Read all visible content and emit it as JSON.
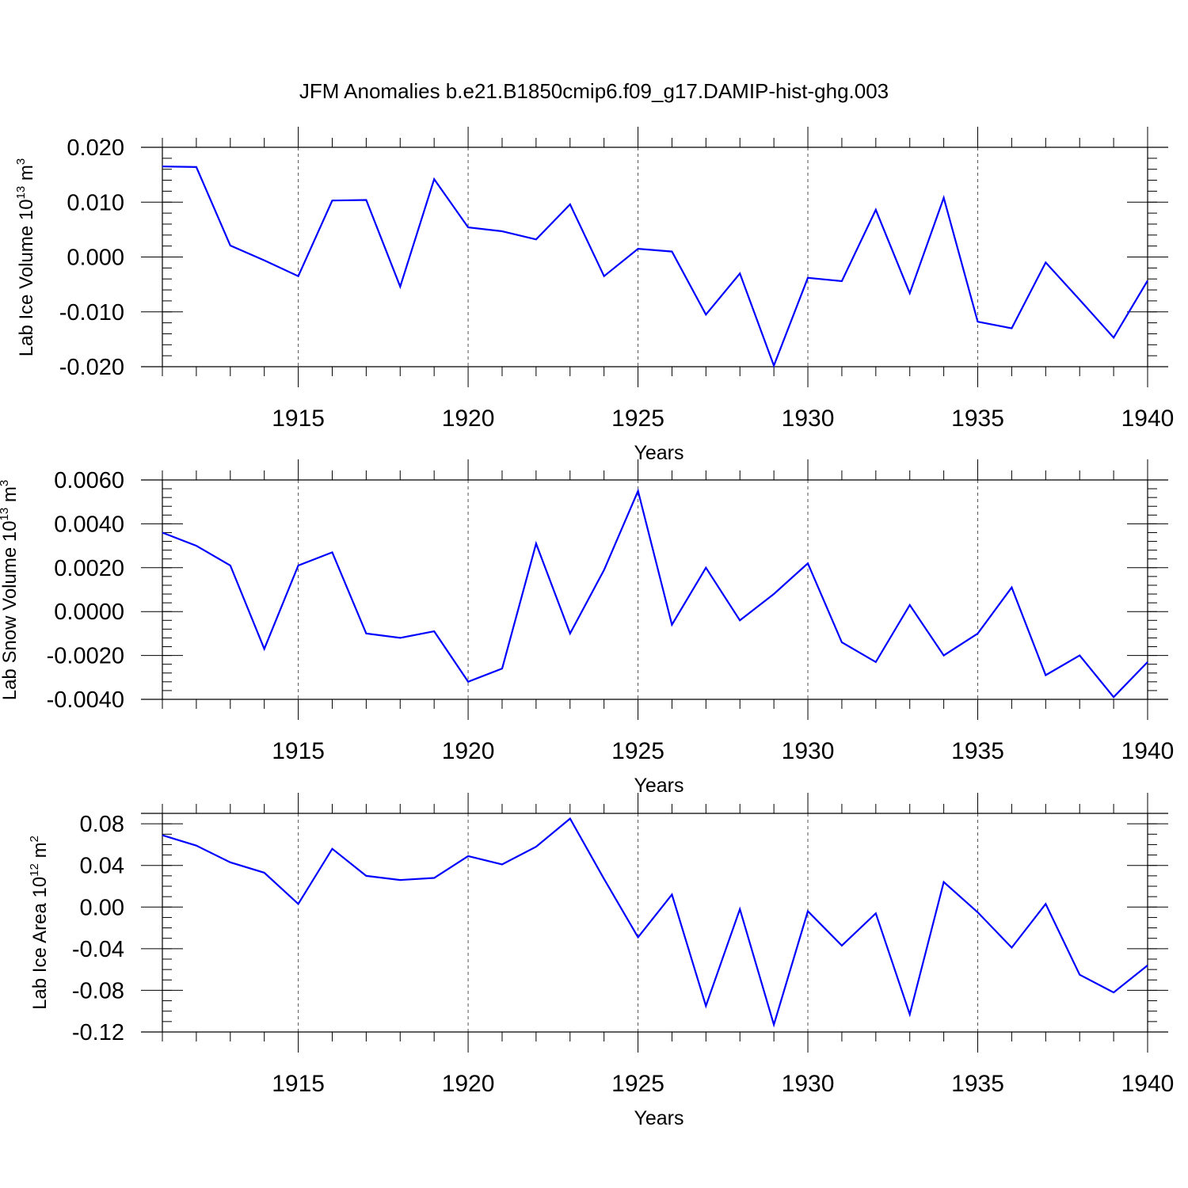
{
  "title": "JFM Anomalies b.e21.B1850cmip6.f09_g17.DAMIP-hist-ghg.003",
  "chart_data": [
    {
      "type": "line",
      "ylabel": {
        "main": "Lab Ice Volume 10",
        "exp": "13",
        "unit": " m",
        "unit_exp": "3"
      },
      "xlabel": "Years",
      "xlim": [
        1911,
        1940
      ],
      "ylim": [
        -0.02,
        0.02
      ],
      "yticks": [
        "0.020",
        "0.010",
        "0.000",
        "-0.010",
        "-0.020"
      ],
      "ytick_values": [
        0.02,
        0.01,
        0.0,
        -0.01,
        -0.02
      ],
      "yminor_step": 0.002,
      "xticks": [
        "1915",
        "1920",
        "1925",
        "1930",
        "1935",
        "1940"
      ],
      "xtick_values": [
        1915,
        1920,
        1925,
        1930,
        1935,
        1940
      ],
      "grid": "dashed vertical at major x ticks",
      "line_color": "#0000ff",
      "x": [
        1911,
        1912,
        1913,
        1914,
        1915,
        1916,
        1917,
        1918,
        1919,
        1920,
        1921,
        1922,
        1923,
        1924,
        1925,
        1926,
        1927,
        1928,
        1929,
        1930,
        1931,
        1932,
        1933,
        1934,
        1935,
        1936,
        1937,
        1938,
        1939,
        1940
      ],
      "values": [
        0.0165,
        0.0164,
        0.0021,
        -0.0006,
        -0.0035,
        0.0103,
        0.0104,
        -0.0054,
        0.0142,
        0.0054,
        0.0047,
        0.0032,
        0.0096,
        -0.0035,
        0.0015,
        0.001,
        -0.0105,
        -0.003,
        -0.0198,
        -0.0038,
        -0.0044,
        0.0086,
        -0.0066,
        0.0108,
        -0.0118,
        -0.013,
        -0.001,
        -0.0078,
        -0.0147,
        -0.0043
      ]
    },
    {
      "type": "line",
      "ylabel": {
        "main": "Lab Snow Volume 10",
        "exp": "13",
        "unit": " m",
        "unit_exp": "3"
      },
      "xlabel": "Years",
      "xlim": [
        1911,
        1940
      ],
      "ylim": [
        -0.004,
        0.006
      ],
      "yticks": [
        "0.0060",
        "0.0040",
        "0.0020",
        "0.0000",
        "-0.0020",
        "-0.0040"
      ],
      "ytick_values": [
        0.006,
        0.004,
        0.002,
        0.0,
        -0.002,
        -0.004
      ],
      "yminor_step": 0.0004,
      "xticks": [
        "1915",
        "1920",
        "1925",
        "1930",
        "1935",
        "1940"
      ],
      "xtick_values": [
        1915,
        1920,
        1925,
        1930,
        1935,
        1940
      ],
      "grid": "dashed vertical at major x ticks",
      "line_color": "#0000ff",
      "x": [
        1911,
        1912,
        1913,
        1914,
        1915,
        1916,
        1917,
        1918,
        1919,
        1920,
        1921,
        1922,
        1923,
        1924,
        1925,
        1926,
        1927,
        1928,
        1929,
        1930,
        1931,
        1932,
        1933,
        1934,
        1935,
        1936,
        1937,
        1938,
        1939,
        1940
      ],
      "values": [
        0.0036,
        0.003,
        0.0021,
        -0.0017,
        0.0021,
        0.0027,
        -0.001,
        -0.0012,
        -0.0009,
        -0.0032,
        -0.0026,
        0.0031,
        -0.001,
        0.0019,
        0.0055,
        -0.0006,
        0.002,
        -0.0004,
        0.0008,
        0.0022,
        -0.0014,
        -0.0023,
        0.0003,
        -0.002,
        -0.001,
        0.0011,
        -0.0029,
        -0.002,
        -0.0039,
        -0.0023
      ]
    },
    {
      "type": "line",
      "ylabel": {
        "main": "Lab Ice Area 10",
        "exp": "12",
        "unit": " m",
        "unit_exp": "2"
      },
      "xlabel": "Years",
      "xlim": [
        1911,
        1940
      ],
      "ylim": [
        -0.12,
        0.09
      ],
      "yticks": [
        "0.08",
        "0.04",
        "0.00",
        "-0.04",
        "-0.08",
        "-0.12"
      ],
      "ytick_values": [
        0.08,
        0.04,
        0.0,
        -0.04,
        -0.08,
        -0.12
      ],
      "yminor_step": 0.01,
      "xticks": [
        "1915",
        "1920",
        "1925",
        "1930",
        "1935",
        "1940"
      ],
      "xtick_values": [
        1915,
        1920,
        1925,
        1930,
        1935,
        1940
      ],
      "grid": "dashed vertical at major x ticks",
      "line_color": "#0000ff",
      "x": [
        1911,
        1912,
        1913,
        1914,
        1915,
        1916,
        1917,
        1918,
        1919,
        1920,
        1921,
        1922,
        1923,
        1924,
        1925,
        1926,
        1927,
        1928,
        1929,
        1930,
        1931,
        1932,
        1933,
        1934,
        1935,
        1936,
        1937,
        1938,
        1939,
        1940
      ],
      "values": [
        0.069,
        0.059,
        0.043,
        0.033,
        0.003,
        0.056,
        0.03,
        0.026,
        0.028,
        0.049,
        0.041,
        0.058,
        0.085,
        0.027,
        -0.029,
        0.012,
        -0.095,
        -0.002,
        -0.113,
        -0.004,
        -0.037,
        -0.006,
        -0.103,
        0.024,
        -0.005,
        -0.039,
        0.003,
        -0.065,
        -0.082,
        -0.056
      ]
    }
  ]
}
